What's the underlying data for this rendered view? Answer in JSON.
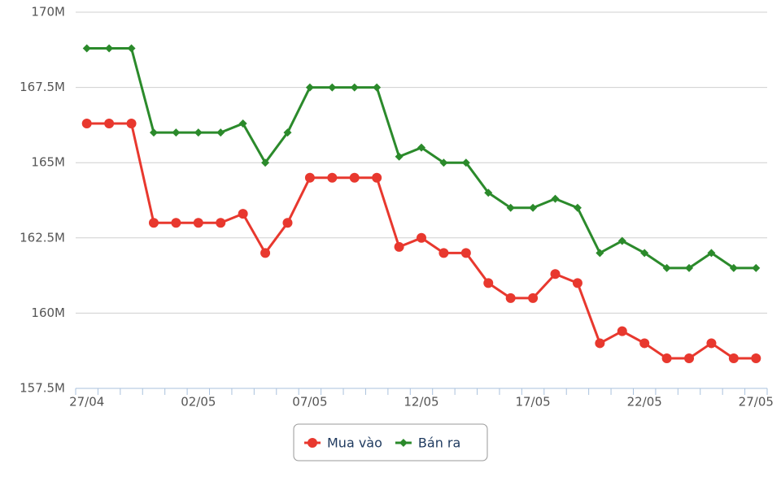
{
  "chart_data": {
    "type": "line",
    "categories": [
      "27/04",
      null,
      null,
      null,
      null,
      "02/05",
      null,
      null,
      null,
      null,
      "07/05",
      null,
      null,
      null,
      null,
      "12/05",
      null,
      null,
      null,
      null,
      "17/05",
      null,
      null,
      null,
      null,
      "22/05",
      null,
      null,
      null,
      null,
      "27/05"
    ],
    "series": [
      {
        "name": "Mua vào",
        "color": "#e8382e",
        "marker": "circle",
        "values": [
          166.3,
          166.3,
          166.3,
          163.0,
          163.0,
          163.0,
          163.0,
          163.3,
          162.0,
          163.0,
          164.5,
          164.5,
          164.5,
          164.5,
          162.2,
          162.5,
          162.0,
          162.0,
          161.0,
          160.5,
          160.5,
          161.3,
          161.0,
          159.0,
          159.4,
          159.0,
          158.5,
          158.5,
          159.0,
          158.5,
          158.5
        ]
      },
      {
        "name": "Bán ra",
        "color": "#2b8a2b",
        "marker": "diamond",
        "values": [
          168.8,
          168.8,
          168.8,
          166.0,
          166.0,
          166.0,
          166.0,
          166.3,
          165.0,
          166.0,
          167.5,
          167.5,
          167.5,
          167.5,
          165.2,
          165.5,
          165.0,
          165.0,
          164.0,
          163.5,
          163.5,
          163.8,
          163.5,
          162.0,
          162.4,
          162.0,
          161.5,
          161.5,
          162.0,
          161.5,
          161.5
        ]
      }
    ],
    "ylim": [
      157.5,
      170
    ],
    "yticks": [
      {
        "value": 157.5,
        "label": "157.5M"
      },
      {
        "value": 160,
        "label": "160M"
      },
      {
        "value": 162.5,
        "label": "162.5M"
      },
      {
        "value": 165,
        "label": "165M"
      },
      {
        "value": 167.5,
        "label": "167.5M"
      },
      {
        "value": 170,
        "label": "170M"
      }
    ],
    "grid": true,
    "legend": "bottom"
  }
}
